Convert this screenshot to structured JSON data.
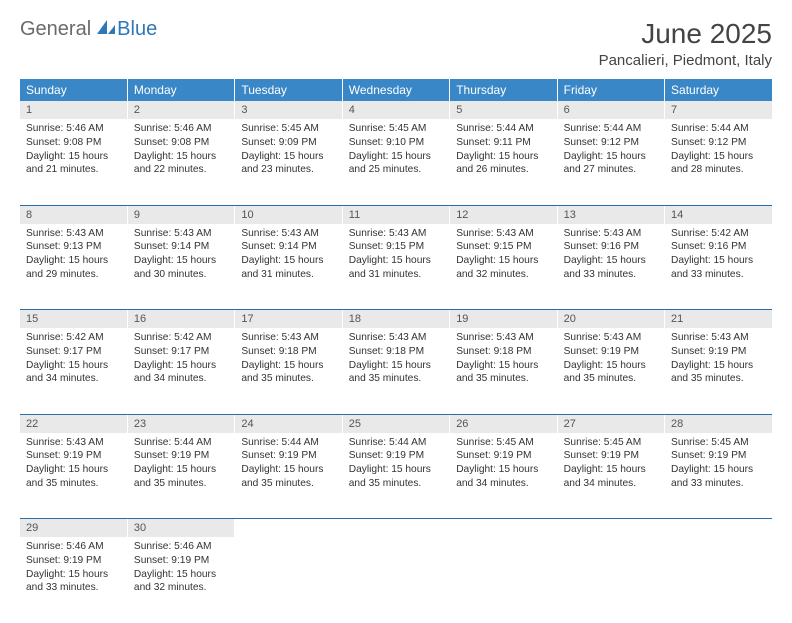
{
  "logo": {
    "part1": "General",
    "part2": "Blue"
  },
  "title": "June 2025",
  "location": "Pancalieri, Piedmont, Italy",
  "colors": {
    "header_bg": "#3a87c7",
    "header_text": "#ffffff",
    "daynum_bg": "#e9e9e9",
    "rule": "#2a6ea8",
    "logo_gray": "#6a6a6a",
    "logo_blue": "#2f78b8"
  },
  "weekdays": [
    "Sunday",
    "Monday",
    "Tuesday",
    "Wednesday",
    "Thursday",
    "Friday",
    "Saturday"
  ],
  "days": [
    {
      "n": 1,
      "sr": "5:46 AM",
      "ss": "9:08 PM",
      "dl": "15 hours and 21 minutes."
    },
    {
      "n": 2,
      "sr": "5:46 AM",
      "ss": "9:08 PM",
      "dl": "15 hours and 22 minutes."
    },
    {
      "n": 3,
      "sr": "5:45 AM",
      "ss": "9:09 PM",
      "dl": "15 hours and 23 minutes."
    },
    {
      "n": 4,
      "sr": "5:45 AM",
      "ss": "9:10 PM",
      "dl": "15 hours and 25 minutes."
    },
    {
      "n": 5,
      "sr": "5:44 AM",
      "ss": "9:11 PM",
      "dl": "15 hours and 26 minutes."
    },
    {
      "n": 6,
      "sr": "5:44 AM",
      "ss": "9:12 PM",
      "dl": "15 hours and 27 minutes."
    },
    {
      "n": 7,
      "sr": "5:44 AM",
      "ss": "9:12 PM",
      "dl": "15 hours and 28 minutes."
    },
    {
      "n": 8,
      "sr": "5:43 AM",
      "ss": "9:13 PM",
      "dl": "15 hours and 29 minutes."
    },
    {
      "n": 9,
      "sr": "5:43 AM",
      "ss": "9:14 PM",
      "dl": "15 hours and 30 minutes."
    },
    {
      "n": 10,
      "sr": "5:43 AM",
      "ss": "9:14 PM",
      "dl": "15 hours and 31 minutes."
    },
    {
      "n": 11,
      "sr": "5:43 AM",
      "ss": "9:15 PM",
      "dl": "15 hours and 31 minutes."
    },
    {
      "n": 12,
      "sr": "5:43 AM",
      "ss": "9:15 PM",
      "dl": "15 hours and 32 minutes."
    },
    {
      "n": 13,
      "sr": "5:43 AM",
      "ss": "9:16 PM",
      "dl": "15 hours and 33 minutes."
    },
    {
      "n": 14,
      "sr": "5:42 AM",
      "ss": "9:16 PM",
      "dl": "15 hours and 33 minutes."
    },
    {
      "n": 15,
      "sr": "5:42 AM",
      "ss": "9:17 PM",
      "dl": "15 hours and 34 minutes."
    },
    {
      "n": 16,
      "sr": "5:42 AM",
      "ss": "9:17 PM",
      "dl": "15 hours and 34 minutes."
    },
    {
      "n": 17,
      "sr": "5:43 AM",
      "ss": "9:18 PM",
      "dl": "15 hours and 35 minutes."
    },
    {
      "n": 18,
      "sr": "5:43 AM",
      "ss": "9:18 PM",
      "dl": "15 hours and 35 minutes."
    },
    {
      "n": 19,
      "sr": "5:43 AM",
      "ss": "9:18 PM",
      "dl": "15 hours and 35 minutes."
    },
    {
      "n": 20,
      "sr": "5:43 AM",
      "ss": "9:19 PM",
      "dl": "15 hours and 35 minutes."
    },
    {
      "n": 21,
      "sr": "5:43 AM",
      "ss": "9:19 PM",
      "dl": "15 hours and 35 minutes."
    },
    {
      "n": 22,
      "sr": "5:43 AM",
      "ss": "9:19 PM",
      "dl": "15 hours and 35 minutes."
    },
    {
      "n": 23,
      "sr": "5:44 AM",
      "ss": "9:19 PM",
      "dl": "15 hours and 35 minutes."
    },
    {
      "n": 24,
      "sr": "5:44 AM",
      "ss": "9:19 PM",
      "dl": "15 hours and 35 minutes."
    },
    {
      "n": 25,
      "sr": "5:44 AM",
      "ss": "9:19 PM",
      "dl": "15 hours and 35 minutes."
    },
    {
      "n": 26,
      "sr": "5:45 AM",
      "ss": "9:19 PM",
      "dl": "15 hours and 34 minutes."
    },
    {
      "n": 27,
      "sr": "5:45 AM",
      "ss": "9:19 PM",
      "dl": "15 hours and 34 minutes."
    },
    {
      "n": 28,
      "sr": "5:45 AM",
      "ss": "9:19 PM",
      "dl": "15 hours and 33 minutes."
    },
    {
      "n": 29,
      "sr": "5:46 AM",
      "ss": "9:19 PM",
      "dl": "15 hours and 33 minutes."
    },
    {
      "n": 30,
      "sr": "5:46 AM",
      "ss": "9:19 PM",
      "dl": "15 hours and 32 minutes."
    }
  ],
  "labels": {
    "sunrise": "Sunrise:",
    "sunset": "Sunset:",
    "daylight": "Daylight:"
  }
}
